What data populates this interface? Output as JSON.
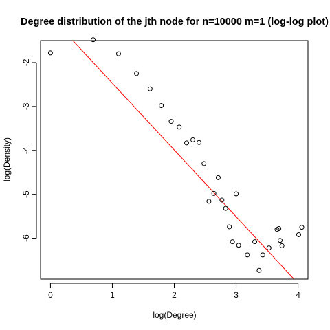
{
  "chart_data": {
    "type": "scatter",
    "title": "Degree distribution of the jth node for n=10000 m=1 (log-log plot)",
    "xlabel": "log(Degree)",
    "ylabel": "log(Density)",
    "xlim": [
      -0.16,
      4.16
    ],
    "ylim": [
      -6.93,
      -1.5
    ],
    "x_ticks": [
      0,
      1,
      2,
      3,
      4
    ],
    "x_tick_labels": [
      "0",
      "1",
      "2",
      "3",
      "4"
    ],
    "y_ticks": [
      -2,
      -3,
      -4,
      -5,
      -6
    ],
    "y_tick_labels": [
      "-2",
      "-3",
      "-4",
      "-5",
      "-6"
    ],
    "grid": false,
    "point_style": "open circle",
    "point_color": "#000000",
    "fit_line": {
      "color": "#ff0000",
      "intercept": -0.95,
      "slope": -1.52
    },
    "points": [
      {
        "x": 0.0,
        "y": -1.78
      },
      {
        "x": 0.69,
        "y": -1.48
      },
      {
        "x": 1.1,
        "y": -1.8
      },
      {
        "x": 1.39,
        "y": -2.25
      },
      {
        "x": 1.61,
        "y": -2.6
      },
      {
        "x": 1.79,
        "y": -2.98
      },
      {
        "x": 1.95,
        "y": -3.34
      },
      {
        "x": 2.08,
        "y": -3.47
      },
      {
        "x": 2.2,
        "y": -3.83
      },
      {
        "x": 2.3,
        "y": -3.76
      },
      {
        "x": 2.4,
        "y": -3.82
      },
      {
        "x": 2.48,
        "y": -4.3
      },
      {
        "x": 2.56,
        "y": -5.16
      },
      {
        "x": 2.64,
        "y": -4.98
      },
      {
        "x": 2.71,
        "y": -4.62
      },
      {
        "x": 2.77,
        "y": -5.13
      },
      {
        "x": 2.83,
        "y": -5.32
      },
      {
        "x": 2.89,
        "y": -5.74
      },
      {
        "x": 2.94,
        "y": -6.08
      },
      {
        "x": 3.0,
        "y": -4.99
      },
      {
        "x": 3.04,
        "y": -6.16
      },
      {
        "x": 3.18,
        "y": -6.38
      },
      {
        "x": 3.3,
        "y": -6.08
      },
      {
        "x": 3.37,
        "y": -6.73
      },
      {
        "x": 3.43,
        "y": -6.38
      },
      {
        "x": 3.53,
        "y": -6.22
      },
      {
        "x": 3.66,
        "y": -5.8
      },
      {
        "x": 3.69,
        "y": -5.78
      },
      {
        "x": 3.71,
        "y": -6.05
      },
      {
        "x": 3.74,
        "y": -6.17
      },
      {
        "x": 4.01,
        "y": -5.92
      },
      {
        "x": 4.06,
        "y": -5.75
      }
    ]
  }
}
